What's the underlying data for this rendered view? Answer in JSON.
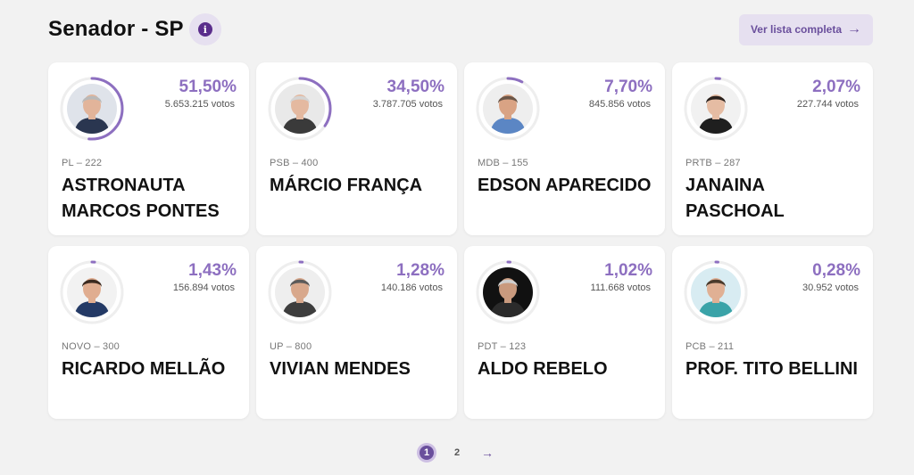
{
  "header": {
    "title": "Senador - SP",
    "info_icon": "info-icon",
    "list_button_label": "Ver lista completa",
    "list_button_icon": "arrow-right-icon"
  },
  "colors": {
    "accent": "#8d6fc0",
    "accent_dark": "#5a2d8c",
    "ring_track": "#eeeeee"
  },
  "candidates": [
    {
      "pct": "51,50%",
      "share": 0.515,
      "votes": "5.653.215 votos",
      "party": "PL – 222",
      "name": "ASTRONAUTA MARCOS PONTES",
      "photo_bg": "#dfe3ea",
      "hair": "#b9b9b9",
      "skin": "#e2b49a",
      "suit": "#2a3650"
    },
    {
      "pct": "34,50%",
      "share": 0.345,
      "votes": "3.787.705 votos",
      "party": "PSB – 400",
      "name": "MÁRCIO FRANÇA",
      "photo_bg": "#e9e9e9",
      "hair": "#d4d4d4",
      "skin": "#e4b9a0",
      "suit": "#3a3a3a"
    },
    {
      "pct": "7,70%",
      "share": 0.077,
      "votes": "845.856 votos",
      "party": "MDB – 155",
      "name": "EDSON APARECIDO",
      "photo_bg": "#eeeeee",
      "hair": "#6b5648",
      "skin": "#d9a384",
      "suit": "#5b86c4"
    },
    {
      "pct": "2,07%",
      "share": 0.0207,
      "votes": "227.744 votos",
      "party": "PRTB – 287",
      "name": "JANAINA PASCHOAL",
      "photo_bg": "#f1f1f1",
      "hair": "#2a211d",
      "skin": "#e5bca3",
      "suit": "#1f1f1f"
    },
    {
      "pct": "1,43%",
      "share": 0.0143,
      "votes": "156.894 votos",
      "party": "NOVO – 300",
      "name": "RICARDO MELLÃO",
      "photo_bg": "#f2f2f2",
      "hair": "#3b2a20",
      "skin": "#e0ad90",
      "suit": "#243a66"
    },
    {
      "pct": "1,28%",
      "share": 0.0128,
      "votes": "140.186 votos",
      "party": "UP – 800",
      "name": "VIVIAN MENDES",
      "photo_bg": "#eeeeee",
      "hair": "#5a5a5a",
      "skin": "#d8a88c",
      "suit": "#3d3d3d"
    },
    {
      "pct": "1,02%",
      "share": 0.0102,
      "votes": "111.668 votos",
      "party": "PDT – 123",
      "name": "ALDO REBELO",
      "photo_bg": "#111111",
      "hair": "#cfcfcf",
      "skin": "#c99a7e",
      "suit": "#2b2b2b"
    },
    {
      "pct": "0,28%",
      "share": 0.0028,
      "votes": "30.952 votos",
      "party": "PCB – 211",
      "name": "PROF. TITO BELLINI",
      "photo_bg": "#d8ecf2",
      "hair": "#4a3a2c",
      "skin": "#e0b094",
      "suit": "#3aa3a8"
    }
  ],
  "pagination": {
    "pages": [
      "1",
      "2"
    ],
    "current": "1",
    "next_icon": "arrow-right-icon"
  }
}
